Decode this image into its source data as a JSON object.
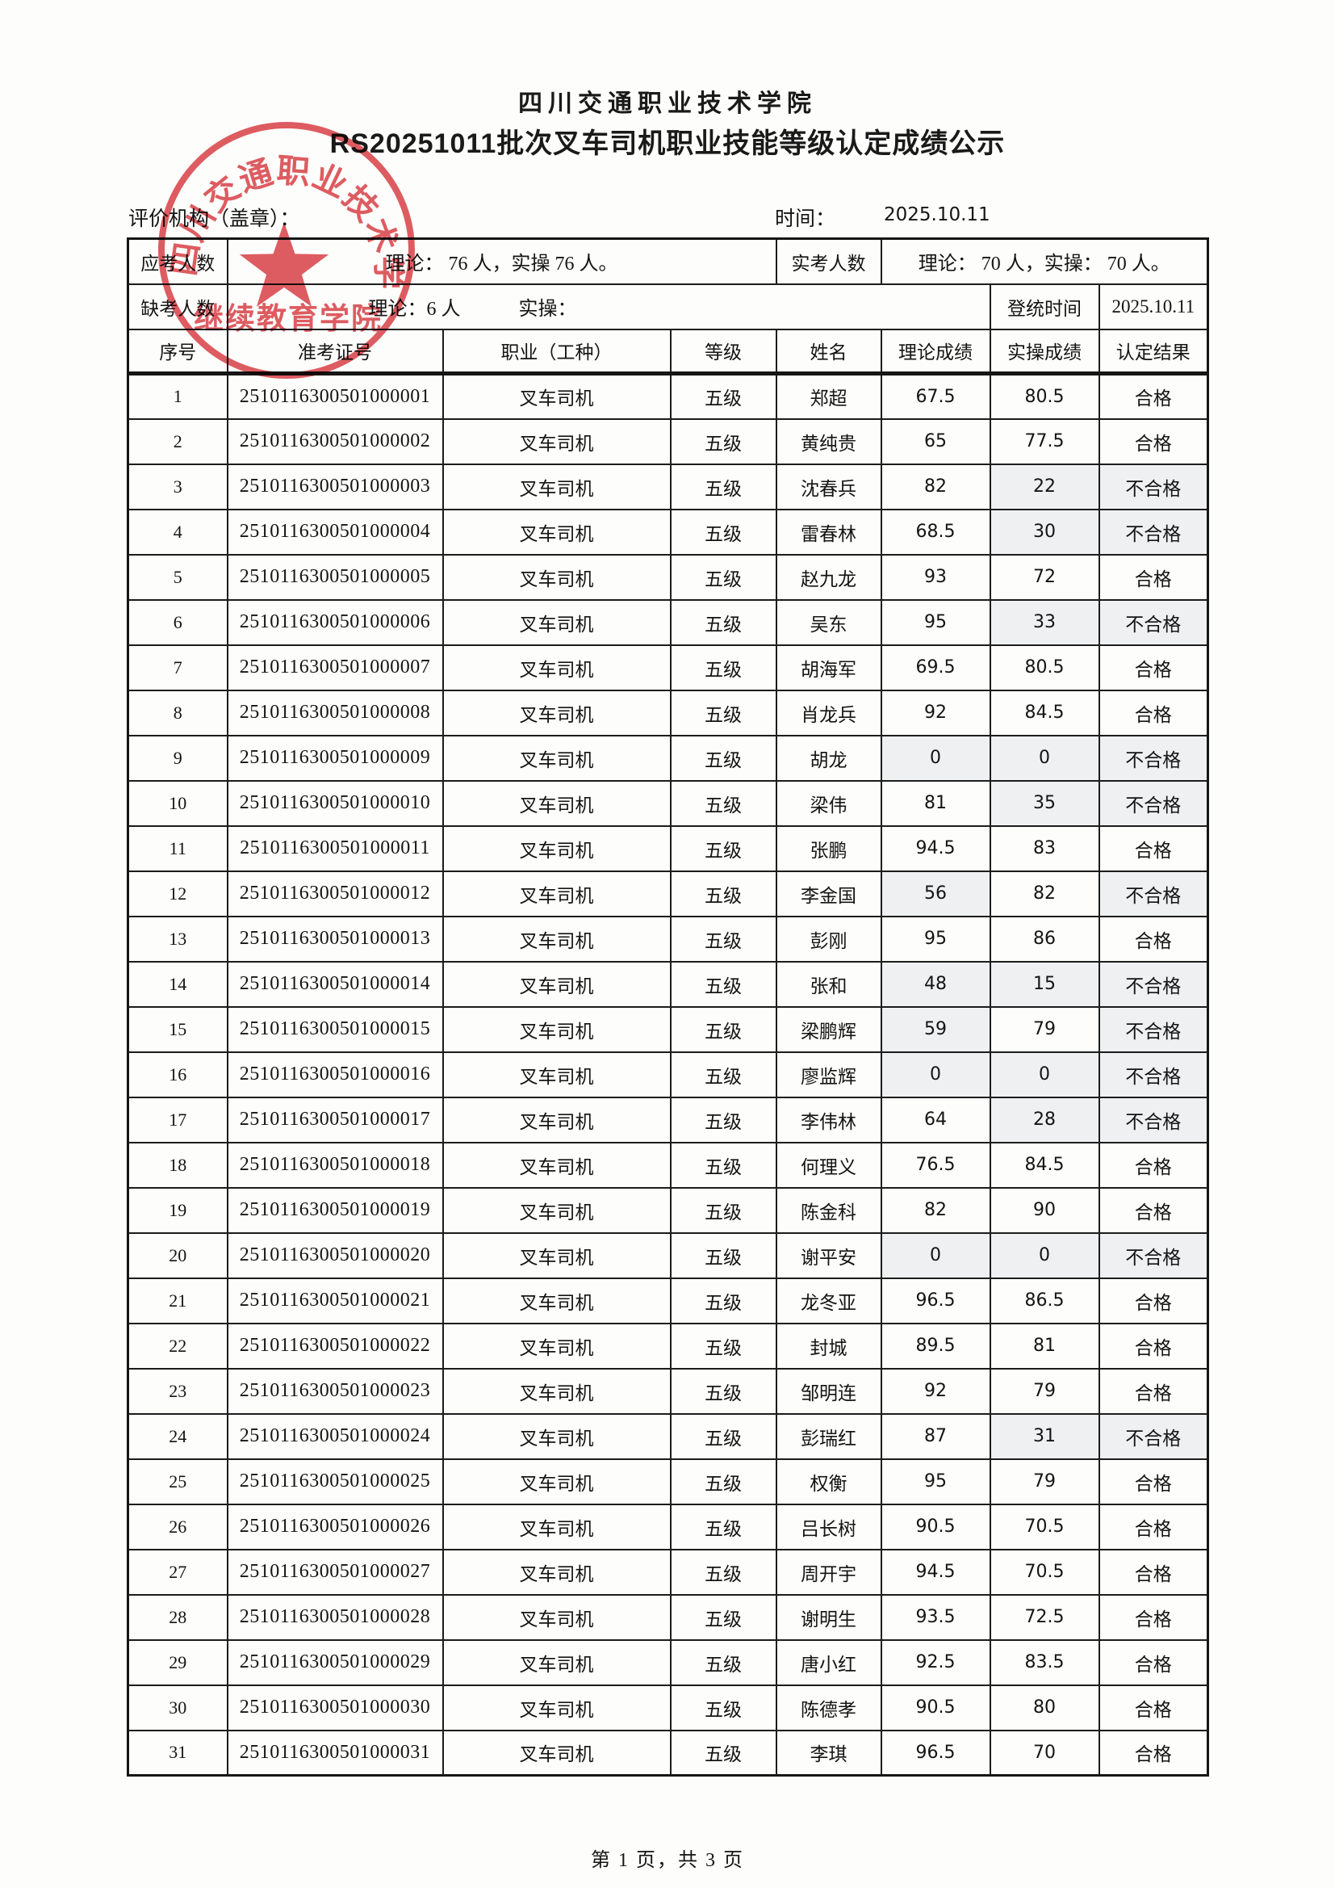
{
  "page": {
    "title_line1": "四川交通职业技术学院",
    "title_line2": "RS20251011批次叉车司机职业技能等级认定成绩公示",
    "footer": "第 1 页，共 3 页"
  },
  "meta": {
    "org_label": "评价机构（盖章）：",
    "time_label": "时间：",
    "time_value": "2025.10.11",
    "stats": {
      "expected_label": "应考人数",
      "expected_value": "理论：  76 人，实操 76 人。",
      "actual_label": "实考人数",
      "actual_value": "理论：  70 人，实操：  70 人。",
      "absent_label": "缺考人数",
      "absent_theory": "理论：6 人",
      "absent_practical": "实操：",
      "register_label": "登统时间",
      "register_value": "2025.10.11"
    }
  },
  "seal": {
    "ring_text": "四川交通职业技术学院",
    "bottom_text": "继续教育学院",
    "color": "#d8393f"
  },
  "table": {
    "headers": [
      "序号",
      "准考证号",
      "职业（工种）",
      "等级",
      "姓名",
      "理论成绩",
      "实操成绩",
      "认定结果"
    ],
    "pass_text": "合格",
    "fail_text": "不合格",
    "rows": [
      [
        "1",
        "2510116300501000001",
        "叉车司机",
        "五级",
        "郑超",
        "67.5",
        "80.5",
        "合格"
      ],
      [
        "2",
        "2510116300501000002",
        "叉车司机",
        "五级",
        "黄纯贵",
        "65",
        "77.5",
        "合格"
      ],
      [
        "3",
        "2510116300501000003",
        "叉车司机",
        "五级",
        "沈春兵",
        "82",
        "22",
        "不合格"
      ],
      [
        "4",
        "2510116300501000004",
        "叉车司机",
        "五级",
        "雷春林",
        "68.5",
        "30",
        "不合格"
      ],
      [
        "5",
        "2510116300501000005",
        "叉车司机",
        "五级",
        "赵九龙",
        "93",
        "72",
        "合格"
      ],
      [
        "6",
        "2510116300501000006",
        "叉车司机",
        "五级",
        "吴东",
        "95",
        "33",
        "不合格"
      ],
      [
        "7",
        "2510116300501000007",
        "叉车司机",
        "五级",
        "胡海军",
        "69.5",
        "80.5",
        "合格"
      ],
      [
        "8",
        "2510116300501000008",
        "叉车司机",
        "五级",
        "肖龙兵",
        "92",
        "84.5",
        "合格"
      ],
      [
        "9",
        "2510116300501000009",
        "叉车司机",
        "五级",
        "胡龙",
        "0",
        "0",
        "不合格"
      ],
      [
        "10",
        "2510116300501000010",
        "叉车司机",
        "五级",
        "梁伟",
        "81",
        "35",
        "不合格"
      ],
      [
        "11",
        "2510116300501000011",
        "叉车司机",
        "五级",
        "张鹏",
        "94.5",
        "83",
        "合格"
      ],
      [
        "12",
        "2510116300501000012",
        "叉车司机",
        "五级",
        "李金国",
        "56",
        "82",
        "不合格"
      ],
      [
        "13",
        "2510116300501000013",
        "叉车司机",
        "五级",
        "彭刚",
        "95",
        "86",
        "合格"
      ],
      [
        "14",
        "2510116300501000014",
        "叉车司机",
        "五级",
        "张和",
        "48",
        "15",
        "不合格"
      ],
      [
        "15",
        "2510116300501000015",
        "叉车司机",
        "五级",
        "梁鹏辉",
        "59",
        "79",
        "不合格"
      ],
      [
        "16",
        "2510116300501000016",
        "叉车司机",
        "五级",
        "廖监辉",
        "0",
        "0",
        "不合格"
      ],
      [
        "17",
        "2510116300501000017",
        "叉车司机",
        "五级",
        "李伟林",
        "64",
        "28",
        "不合格"
      ],
      [
        "18",
        "2510116300501000018",
        "叉车司机",
        "五级",
        "何理义",
        "76.5",
        "84.5",
        "合格"
      ],
      [
        "19",
        "2510116300501000019",
        "叉车司机",
        "五级",
        "陈金科",
        "82",
        "90",
        "合格"
      ],
      [
        "20",
        "2510116300501000020",
        "叉车司机",
        "五级",
        "谢平安",
        "0",
        "0",
        "不合格"
      ],
      [
        "21",
        "2510116300501000021",
        "叉车司机",
        "五级",
        "龙冬亚",
        "96.5",
        "86.5",
        "合格"
      ],
      [
        "22",
        "2510116300501000022",
        "叉车司机",
        "五级",
        "封城",
        "89.5",
        "81",
        "合格"
      ],
      [
        "23",
        "2510116300501000023",
        "叉车司机",
        "五级",
        "邹明连",
        "92",
        "79",
        "合格"
      ],
      [
        "24",
        "2510116300501000024",
        "叉车司机",
        "五级",
        "彭瑞红",
        "87",
        "31",
        "不合格"
      ],
      [
        "25",
        "2510116300501000025",
        "叉车司机",
        "五级",
        "权衡",
        "95",
        "79",
        "合格"
      ],
      [
        "26",
        "2510116300501000026",
        "叉车司机",
        "五级",
        "吕长树",
        "90.5",
        "70.5",
        "合格"
      ],
      [
        "27",
        "2510116300501000027",
        "叉车司机",
        "五级",
        "周开宇",
        "94.5",
        "70.5",
        "合格"
      ],
      [
        "28",
        "2510116300501000028",
        "叉车司机",
        "五级",
        "谢明生",
        "93.5",
        "72.5",
        "合格"
      ],
      [
        "29",
        "2510116300501000029",
        "叉车司机",
        "五级",
        "唐小红",
        "92.5",
        "83.5",
        "合格"
      ],
      [
        "30",
        "2510116300501000030",
        "叉车司机",
        "五级",
        "陈德孝",
        "90.5",
        "80",
        "合格"
      ],
      [
        "31",
        "2510116300501000031",
        "叉车司机",
        "五级",
        "李琪",
        "96.5",
        "70",
        "合格"
      ]
    ]
  }
}
